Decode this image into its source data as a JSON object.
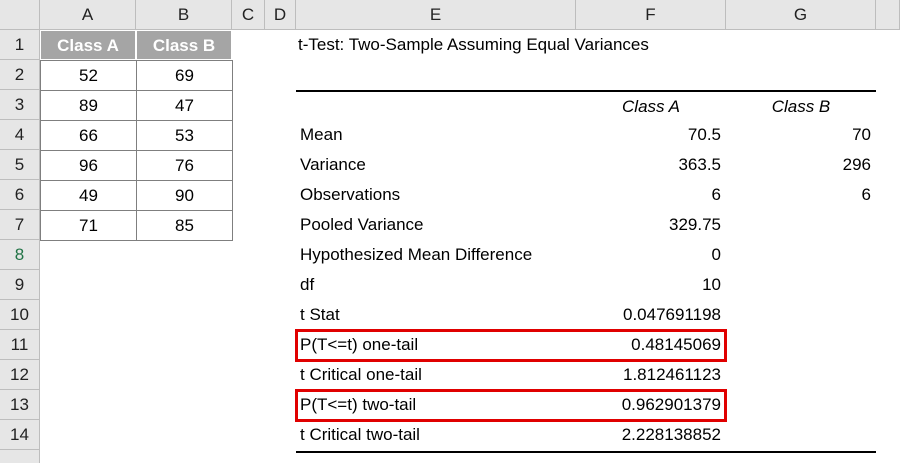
{
  "columns": [
    "A",
    "B",
    "C",
    "D",
    "E",
    "F",
    "G"
  ],
  "rows": [
    1,
    2,
    3,
    4,
    5,
    6,
    7,
    8,
    9,
    10,
    11,
    12,
    13,
    14
  ],
  "class_table": {
    "headers": [
      "Class A",
      "Class B"
    ],
    "rows": [
      [
        52,
        69
      ],
      [
        89,
        47
      ],
      [
        66,
        53
      ],
      [
        96,
        76
      ],
      [
        49,
        90
      ],
      [
        71,
        85
      ]
    ]
  },
  "ttest": {
    "title": "t-Test: Two-Sample Assuming Equal Variances",
    "headers": [
      "Class A",
      "Class B"
    ],
    "rows": [
      {
        "label": "Mean",
        "values": [
          70.5,
          70
        ]
      },
      {
        "label": "Variance",
        "values": [
          363.5,
          296
        ]
      },
      {
        "label": "Observations",
        "values": [
          6,
          6
        ]
      },
      {
        "label": "Pooled Variance",
        "values": [
          329.75
        ]
      },
      {
        "label": "Hypothesized Mean Difference",
        "values": [
          0
        ]
      },
      {
        "label": "df",
        "values": [
          10
        ]
      },
      {
        "label": "t Stat",
        "values": [
          0.047691198
        ]
      },
      {
        "label": "P(T<=t) one-tail",
        "values": [
          0.48145069
        ]
      },
      {
        "label": "t Critical one-tail",
        "values": [
          1.812461123
        ]
      },
      {
        "label": "P(T<=t) two-tail",
        "values": [
          0.962901379
        ]
      },
      {
        "label": "t Critical two-tail",
        "values": [
          2.228138852
        ]
      }
    ]
  }
}
